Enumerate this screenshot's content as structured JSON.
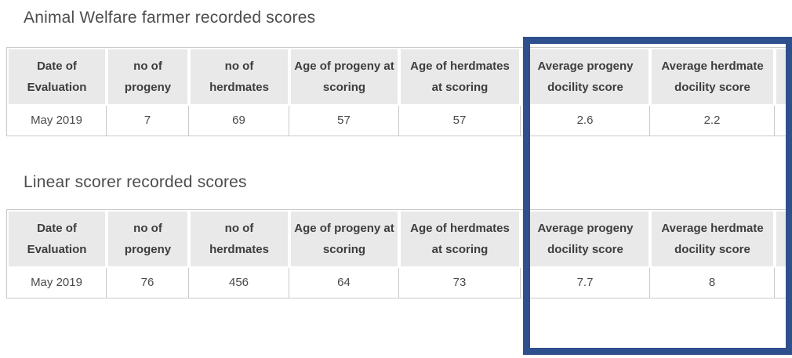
{
  "tables": [
    {
      "title": "Animal Welfare farmer recorded scores",
      "columns": [
        "Date of Evaluation",
        "no of progeny",
        "no of herdmates",
        "Age of progeny at scoring",
        "Age of herdmates at scoring",
        "Average progeny docility score",
        "Average herdmate docility score",
        ""
      ],
      "rows": [
        [
          "May 2019",
          "7",
          "69",
          "57",
          "57",
          "2.6",
          "2.2",
          ""
        ]
      ]
    },
    {
      "title": "Linear scorer recorded scores",
      "columns": [
        "Date of Evaluation",
        "no of progeny",
        "no of herdmates",
        "Age of progeny at scoring",
        "Age of herdmates at scoring",
        "Average progeny docility score",
        "Average herdmate docility score",
        ""
      ],
      "rows": [
        [
          "May 2019",
          "76",
          "456",
          "64",
          "73",
          "7.7",
          "8",
          ""
        ]
      ]
    }
  ],
  "highlight_box": {
    "description": "blue rectangle highlighting the average docility score columns of both tables",
    "color": "#2e518e"
  },
  "colors": {
    "header_background": "#e9e9e9",
    "table_border": "#c9c9c9",
    "title_text": "#4d4d4d",
    "header_text": "#3d3d3d",
    "cell_text": "#4a4a4a",
    "highlight": "#2e518e"
  }
}
